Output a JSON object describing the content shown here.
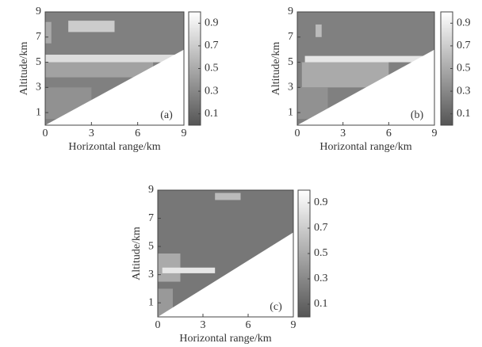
{
  "chart_data": [
    {
      "type": "heatmap",
      "panel_label": "(a)",
      "xlabel": "Horizontal range/km",
      "ylabel": "Altitude/km",
      "xlim": [
        0,
        9
      ],
      "ylim": [
        0,
        9
      ],
      "xticks": [
        0,
        3,
        6,
        9
      ],
      "yticks": [
        1,
        3,
        5,
        7,
        9
      ],
      "background": 0.25,
      "regions": [
        {
          "x": [
            1.5,
            4.5
          ],
          "y": [
            7.4,
            8.3
          ],
          "value": 0.7
        },
        {
          "x": [
            0,
            0.4
          ],
          "y": [
            6.5,
            8.2
          ],
          "value": 0.5
        },
        {
          "x": [
            0,
            7
          ],
          "y": [
            3.8,
            5.0
          ],
          "value": 0.45
        },
        {
          "x": [
            0,
            9
          ],
          "y": [
            5.0,
            5.6
          ],
          "value": 0.8
        },
        {
          "x": [
            0,
            3
          ],
          "y": [
            0.5,
            3.0
          ],
          "value": 0.35
        }
      ],
      "no_data_boundary": {
        "x": [
          0,
          9
        ],
        "y": [
          0,
          6
        ]
      },
      "clim": [
        0,
        1
      ],
      "cticks": [
        0.1,
        0.3,
        0.5,
        0.7,
        0.9
      ]
    },
    {
      "type": "heatmap",
      "panel_label": "(b)",
      "xlabel": "Horizontal range/km",
      "ylabel": "Altitude/km",
      "xlim": [
        0,
        9
      ],
      "ylim": [
        0,
        9
      ],
      "xticks": [
        0,
        3,
        6,
        9
      ],
      "yticks": [
        1,
        3,
        5,
        7,
        9
      ],
      "background": 0.25,
      "regions": [
        {
          "x": [
            1.2,
            1.6
          ],
          "y": [
            7.0,
            8.0
          ],
          "value": 0.6
        },
        {
          "x": [
            0.3,
            6
          ],
          "y": [
            3.0,
            5.0
          ],
          "value": 0.5
        },
        {
          "x": [
            0.5,
            9
          ],
          "y": [
            5.0,
            5.5
          ],
          "value": 0.85
        },
        {
          "x": [
            0,
            2
          ],
          "y": [
            0.5,
            3.0
          ],
          "value": 0.35
        }
      ],
      "no_data_boundary": {
        "x": [
          0,
          9
        ],
        "y": [
          0,
          6
        ]
      },
      "clim": [
        0,
        1
      ],
      "cticks": [
        0.1,
        0.3,
        0.5,
        0.7,
        0.9
      ]
    },
    {
      "type": "heatmap",
      "panel_label": "(c)",
      "xlabel": "Horizontal range/km",
      "ylabel": "Altitude/km",
      "xlim": [
        0,
        9
      ],
      "ylim": [
        0,
        9
      ],
      "xticks": [
        0,
        3,
        6,
        9
      ],
      "yticks": [
        1,
        3,
        5,
        7,
        9
      ],
      "background": 0.2,
      "regions": [
        {
          "x": [
            3.8,
            5.5
          ],
          "y": [
            8.3,
            8.8
          ],
          "value": 0.6
        },
        {
          "x": [
            0,
            1.5
          ],
          "y": [
            2.5,
            4.5
          ],
          "value": 0.5
        },
        {
          "x": [
            0.3,
            3.8
          ],
          "y": [
            3.1,
            3.5
          ],
          "value": 0.85
        },
        {
          "x": [
            0,
            1
          ],
          "y": [
            0,
            2
          ],
          "value": 0.4
        }
      ],
      "no_data_boundary": {
        "x": [
          0,
          9
        ],
        "y": [
          0,
          6
        ]
      },
      "clim": [
        0,
        1
      ],
      "cticks": [
        0.1,
        0.3,
        0.5,
        0.7,
        0.9
      ]
    }
  ]
}
